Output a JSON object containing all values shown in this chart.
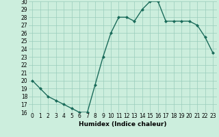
{
  "x": [
    0,
    1,
    2,
    3,
    4,
    5,
    6,
    7,
    8,
    9,
    10,
    11,
    12,
    13,
    14,
    15,
    16,
    17,
    18,
    19,
    20,
    21,
    22,
    23
  ],
  "y": [
    20,
    19,
    18,
    17.5,
    17,
    16.5,
    16,
    16,
    19.5,
    23,
    26,
    28,
    28,
    27.5,
    29,
    30,
    30,
    27.5,
    27.5,
    27.5,
    27.5,
    27,
    25.5,
    23.5
  ],
  "line_color": "#1a6b5a",
  "marker": "D",
  "marker_size": 2.0,
  "bg_color": "#cceedd",
  "grid_color": "#99ccbb",
  "xlabel": "Humidex (Indice chaleur)",
  "xlim": [
    -0.5,
    23.5
  ],
  "ylim": [
    16,
    30
  ],
  "xticks": [
    0,
    1,
    2,
    3,
    4,
    5,
    6,
    7,
    8,
    9,
    10,
    11,
    12,
    13,
    14,
    15,
    16,
    17,
    18,
    19,
    20,
    21,
    22,
    23
  ],
  "yticks": [
    16,
    17,
    18,
    19,
    20,
    21,
    22,
    23,
    24,
    25,
    26,
    27,
    28,
    29,
    30
  ],
  "tick_fontsize": 5.5,
  "xlabel_fontsize": 6.5,
  "line_width": 1.0
}
